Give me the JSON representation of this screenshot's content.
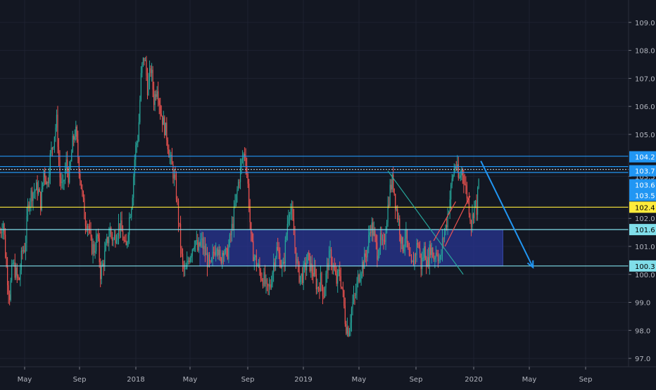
{
  "chart_data": {
    "type": "candlestick",
    "title": "",
    "x_ticks": [
      "May",
      "Sep",
      "2018",
      "May",
      "Sep",
      "2019",
      "May",
      "Sep",
      "2020",
      "May",
      "Sep"
    ],
    "y_ticks": [
      "109.0",
      "108.0",
      "107.0",
      "106.0",
      "105.0",
      "103.5",
      "102.0",
      "101.0",
      "100.0",
      "99.0",
      "98.0",
      "97.0"
    ],
    "ylim": [
      96.7,
      109.8
    ],
    "price_badges": [
      {
        "label": "104.2",
        "value": 104.2,
        "color": "#2196f3",
        "text_color": "#ffffff"
      },
      {
        "label": "103.7",
        "value": 103.7,
        "color": "#2196f3",
        "text_color": "#ffffff"
      },
      {
        "label": "103.6",
        "value": 103.2,
        "color": "#2196f3",
        "text_color": "#ffffff"
      },
      {
        "label": "103.5",
        "value": 102.82,
        "color": "#2196f3",
        "text_color": "#ffffff"
      },
      {
        "label": "102.4",
        "value": 102.4,
        "color": "#ffeb3b",
        "text_color": "#000000"
      },
      {
        "label": "101.6",
        "value": 101.6,
        "color": "#80deea",
        "text_color": "#000000"
      },
      {
        "label": "100.3",
        "value": 100.3,
        "color": "#80deea",
        "text_color": "#000000"
      }
    ],
    "horizontal_lines": [
      {
        "value": 104.22,
        "color": "#2196f3",
        "style": "solid"
      },
      {
        "value": 103.85,
        "color": "#2196f3",
        "style": "solid"
      },
      {
        "value": 103.75,
        "color": "#b0bec5",
        "style": "dotted"
      },
      {
        "value": 103.64,
        "color": "#2196f3",
        "style": "solid"
      },
      {
        "value": 102.4,
        "color": "#ffeb3b",
        "style": "solid"
      },
      {
        "value": 101.6,
        "color": "#80deea",
        "style": "solid"
      },
      {
        "value": 100.3,
        "color": "#80deea",
        "style": "solid"
      }
    ],
    "zone": {
      "x_start": 0.318,
      "x_end": 0.8,
      "y_top": 101.6,
      "y_bottom": 100.3,
      "color": "#283593"
    },
    "trendlines": [
      {
        "x1": 0.617,
        "y1": 103.7,
        "x2": 0.737,
        "y2": 100.0,
        "color": "#26a69a"
      },
      {
        "x1": 0.69,
        "y1": 101.2,
        "x2": 0.725,
        "y2": 102.6,
        "color": "#ef5350"
      },
      {
        "x1": 0.708,
        "y1": 101.0,
        "x2": 0.748,
        "y2": 102.8,
        "color": "#ef5350"
      }
    ],
    "arrow": {
      "x1": 0.765,
      "y1": 104.05,
      "x2": 0.848,
      "y2": 100.25,
      "color": "#2196f3"
    },
    "price_path": [
      [
        0.0,
        101.5
      ],
      [
        0.005,
        101.9
      ],
      [
        0.01,
        100.3
      ],
      [
        0.015,
        99.2
      ],
      [
        0.02,
        100.4
      ],
      [
        0.03,
        99.7
      ],
      [
        0.035,
        100.8
      ],
      [
        0.04,
        101.0
      ],
      [
        0.045,
        102.6
      ],
      [
        0.05,
        102.9
      ],
      [
        0.06,
        103.1
      ],
      [
        0.065,
        102.5
      ],
      [
        0.07,
        103.8
      ],
      [
        0.075,
        103.2
      ],
      [
        0.08,
        104.2
      ],
      [
        0.085,
        104.8
      ],
      [
        0.09,
        105.5
      ],
      [
        0.095,
        103.5
      ],
      [
        0.1,
        103.0
      ],
      [
        0.105,
        104.0
      ],
      [
        0.11,
        103.4
      ],
      [
        0.115,
        104.6
      ],
      [
        0.12,
        105.2
      ],
      [
        0.125,
        104.0
      ],
      [
        0.13,
        103.0
      ],
      [
        0.135,
        102.0
      ],
      [
        0.14,
        101.8
      ],
      [
        0.145,
        101.0
      ],
      [
        0.15,
        100.9
      ],
      [
        0.155,
        101.4
      ],
      [
        0.16,
        100.0
      ],
      [
        0.165,
        100.5
      ],
      [
        0.17,
        101.1
      ],
      [
        0.175,
        101.6
      ],
      [
        0.18,
        101.2
      ],
      [
        0.19,
        101.8
      ],
      [
        0.195,
        101.4
      ],
      [
        0.2,
        100.8
      ],
      [
        0.205,
        101.9
      ],
      [
        0.21,
        102.7
      ],
      [
        0.215,
        104.4
      ],
      [
        0.22,
        105.0
      ],
      [
        0.225,
        107.3
      ],
      [
        0.23,
        107.8
      ],
      [
        0.235,
        106.6
      ],
      [
        0.24,
        107.4
      ],
      [
        0.245,
        106.2
      ],
      [
        0.25,
        106.8
      ],
      [
        0.255,
        105.9
      ],
      [
        0.26,
        105.4
      ],
      [
        0.265,
        105.0
      ],
      [
        0.27,
        104.2
      ],
      [
        0.275,
        103.7
      ],
      [
        0.28,
        103.0
      ],
      [
        0.285,
        101.7
      ],
      [
        0.29,
        100.3
      ],
      [
        0.295,
        100.0
      ],
      [
        0.3,
        100.6
      ],
      [
        0.305,
        100.9
      ],
      [
        0.31,
        101.3
      ],
      [
        0.315,
        100.8
      ],
      [
        0.32,
        101.2
      ],
      [
        0.33,
        100.5
      ],
      [
        0.335,
        100.2
      ],
      [
        0.34,
        100.8
      ],
      [
        0.345,
        101.2
      ],
      [
        0.35,
        100.4
      ],
      [
        0.355,
        101.0
      ],
      [
        0.36,
        100.6
      ],
      [
        0.365,
        101.1
      ],
      [
        0.37,
        101.8
      ],
      [
        0.375,
        102.6
      ],
      [
        0.38,
        103.4
      ],
      [
        0.385,
        104.1
      ],
      [
        0.39,
        104.4
      ],
      [
        0.395,
        103.0
      ],
      [
        0.4,
        101.0
      ],
      [
        0.405,
        100.6
      ],
      [
        0.41,
        100.3
      ],
      [
        0.415,
        100.0
      ],
      [
        0.42,
        99.8
      ],
      [
        0.425,
        99.4
      ],
      [
        0.43,
        99.6
      ],
      [
        0.435,
        100.4
      ],
      [
        0.44,
        100.9
      ],
      [
        0.445,
        100.6
      ],
      [
        0.45,
        100.1
      ],
      [
        0.455,
        101.3
      ],
      [
        0.46,
        102.5
      ],
      [
        0.465,
        102.0
      ],
      [
        0.47,
        100.8
      ],
      [
        0.475,
        100.0
      ],
      [
        0.48,
        99.9
      ],
      [
        0.485,
        100.2
      ],
      [
        0.49,
        100.6
      ],
      [
        0.495,
        100.2
      ],
      [
        0.5,
        100.0
      ],
      [
        0.505,
        99.5
      ],
      [
        0.51,
        99.8
      ],
      [
        0.515,
        99.3
      ],
      [
        0.52,
        100.2
      ],
      [
        0.525,
        100.7
      ],
      [
        0.53,
        100.3
      ],
      [
        0.535,
        99.7
      ],
      [
        0.54,
        100.1
      ],
      [
        0.545,
        99.4
      ],
      [
        0.55,
        98.2
      ],
      [
        0.555,
        98.0
      ],
      [
        0.56,
        98.9
      ],
      [
        0.565,
        99.2
      ],
      [
        0.57,
        99.9
      ],
      [
        0.575,
        100.3
      ],
      [
        0.58,
        100.5
      ],
      [
        0.585,
        101.0
      ],
      [
        0.59,
        101.8
      ],
      [
        0.595,
        101.4
      ],
      [
        0.6,
        100.8
      ],
      [
        0.605,
        101.2
      ],
      [
        0.61,
        100.9
      ],
      [
        0.615,
        102.0
      ],
      [
        0.62,
        103.0
      ],
      [
        0.625,
        103.4
      ],
      [
        0.63,
        102.4
      ],
      [
        0.635,
        101.8
      ],
      [
        0.64,
        100.9
      ],
      [
        0.645,
        101.5
      ],
      [
        0.65,
        100.6
      ],
      [
        0.655,
        100.2
      ],
      [
        0.66,
        100.7
      ],
      [
        0.665,
        101.2
      ],
      [
        0.67,
        100.3
      ],
      [
        0.675,
        100.9
      ],
      [
        0.68,
        100.4
      ],
      [
        0.685,
        101.0
      ],
      [
        0.69,
        100.6
      ],
      [
        0.695,
        100.9
      ],
      [
        0.7,
        100.4
      ],
      [
        0.705,
        101.3
      ],
      [
        0.71,
        101.8
      ],
      [
        0.715,
        102.6
      ],
      [
        0.72,
        103.5
      ],
      [
        0.725,
        104.0
      ],
      [
        0.73,
        103.3
      ],
      [
        0.735,
        103.8
      ],
      [
        0.74,
        103.2
      ],
      [
        0.745,
        102.6
      ],
      [
        0.75,
        101.8
      ],
      [
        0.755,
        102.6
      ],
      [
        0.758,
        102.3
      ],
      [
        0.763,
        103.7
      ]
    ]
  }
}
